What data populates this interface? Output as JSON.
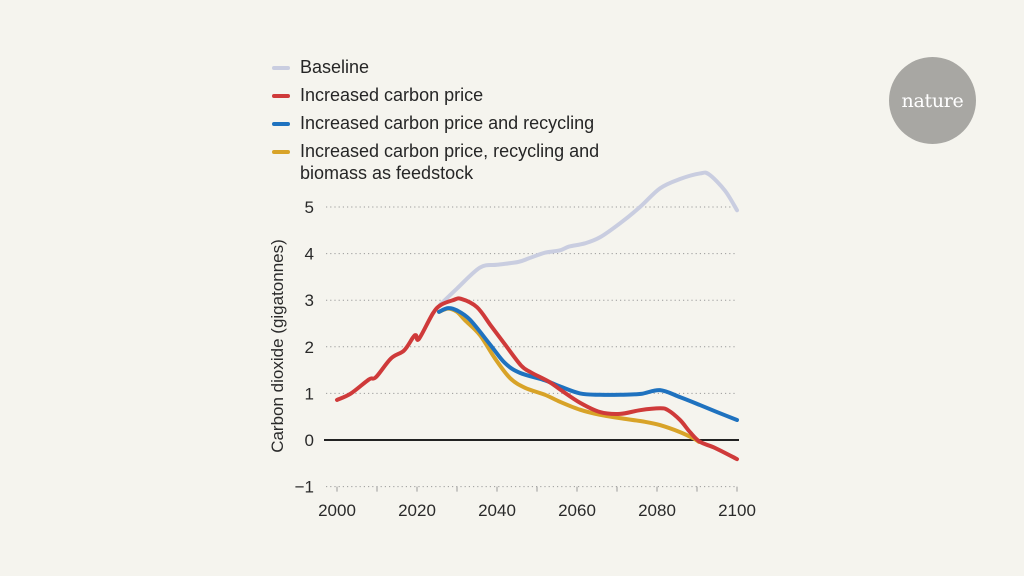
{
  "logo": {
    "text": "nature"
  },
  "chart_data": {
    "type": "line",
    "title": "",
    "xlabel": "",
    "ylabel": "Carbon dioxide (gigatonnes)",
    "xlim": [
      2000,
      2100
    ],
    "ylim": [
      -1,
      5
    ],
    "xticks": [
      2000,
      2020,
      2040,
      2060,
      2080,
      2100
    ],
    "xticks_minor": [
      2010,
      2030,
      2050,
      2070,
      2090
    ],
    "yticks": [
      -1,
      0,
      1,
      2,
      3,
      4,
      5
    ],
    "ytick_labels": [
      "−1",
      "0",
      "1",
      "2",
      "3",
      "4",
      "5"
    ],
    "xtick_labels": [
      "2000",
      "2020",
      "2040",
      "2060",
      "2080",
      "2100"
    ],
    "grid": "dotted horizontal",
    "legend_position": "top-left",
    "series": [
      {
        "name": "Baseline",
        "color": "#c9cde0",
        "x": [
          2025.75,
          2030,
          2035.75,
          2040,
          2045.25,
          2048,
          2052,
          2055.75,
          2058,
          2062,
          2065.75,
          2070.75,
          2075.75,
          2080.75,
          2085.75,
          2090.75,
          2093,
          2097,
          2100
        ],
        "y": [
          2.9,
          3.25,
          3.7,
          3.76,
          3.82,
          3.9,
          4.02,
          4.07,
          4.15,
          4.22,
          4.35,
          4.65,
          5.0,
          5.4,
          5.6,
          5.72,
          5.7,
          5.35,
          4.93
        ]
      },
      {
        "name": "Increased carbon price",
        "color": "#cf3a3a",
        "x": [
          2000,
          2003.5,
          2008,
          2009.75,
          2013.5,
          2016.75,
          2019,
          2019.75,
          2020.5,
          2024,
          2026,
          2029,
          2031,
          2035,
          2038.5,
          2042,
          2046,
          2048.5,
          2053,
          2056,
          2060.75,
          2065.75,
          2070.75,
          2075.75,
          2080.75,
          2082.75,
          2085.75,
          2088.25,
          2090.75,
          2094.5,
          2100
        ],
        "y": [
          0.86,
          1.0,
          1.3,
          1.35,
          1.75,
          1.92,
          2.2,
          2.25,
          2.17,
          2.72,
          2.9,
          3.0,
          3.03,
          2.85,
          2.45,
          2.05,
          1.6,
          1.45,
          1.25,
          1.07,
          0.8,
          0.6,
          0.56,
          0.64,
          0.68,
          0.64,
          0.43,
          0.17,
          -0.04,
          -0.17,
          -0.41
        ]
      },
      {
        "name": "Increased carbon price and recycling",
        "color": "#1f72bf",
        "x": [
          2025.5,
          2027.75,
          2030,
          2033.25,
          2038.25,
          2042,
          2045.75,
          2052,
          2055.75,
          2060.75,
          2065.75,
          2070.75,
          2076,
          2080.75,
          2085.75,
          2090.75,
          2095,
          2100
        ],
        "y": [
          2.75,
          2.83,
          2.78,
          2.58,
          2.05,
          1.65,
          1.44,
          1.28,
          1.15,
          1.0,
          0.97,
          0.97,
          0.99,
          1.07,
          0.92,
          0.75,
          0.6,
          0.43
        ]
      },
      {
        "name": "Increased carbon price, recycling and biomass as feedstock",
        "color": "#d8a328",
        "x": [
          2025.5,
          2027.75,
          2030,
          2032,
          2035.75,
          2039.5,
          2043.25,
          2047,
          2052,
          2055.75,
          2060.75,
          2065.75,
          2070.75,
          2077,
          2080.75,
          2085.75,
          2089,
          2090.5
        ],
        "y": [
          2.75,
          2.82,
          2.75,
          2.57,
          2.25,
          1.75,
          1.33,
          1.12,
          0.97,
          0.82,
          0.65,
          0.54,
          0.47,
          0.39,
          0.32,
          0.17,
          0.04,
          -0.04
        ]
      }
    ],
    "legend": [
      {
        "label": "Baseline",
        "color": "#c9cde0"
      },
      {
        "label": "Increased carbon price",
        "color": "#cf3a3a"
      },
      {
        "label": "Increased carbon price and recycling",
        "color": "#1f72bf"
      },
      {
        "label": "Increased carbon price, recycling and biomass as feedstock",
        "color": "#d8a328"
      }
    ]
  }
}
